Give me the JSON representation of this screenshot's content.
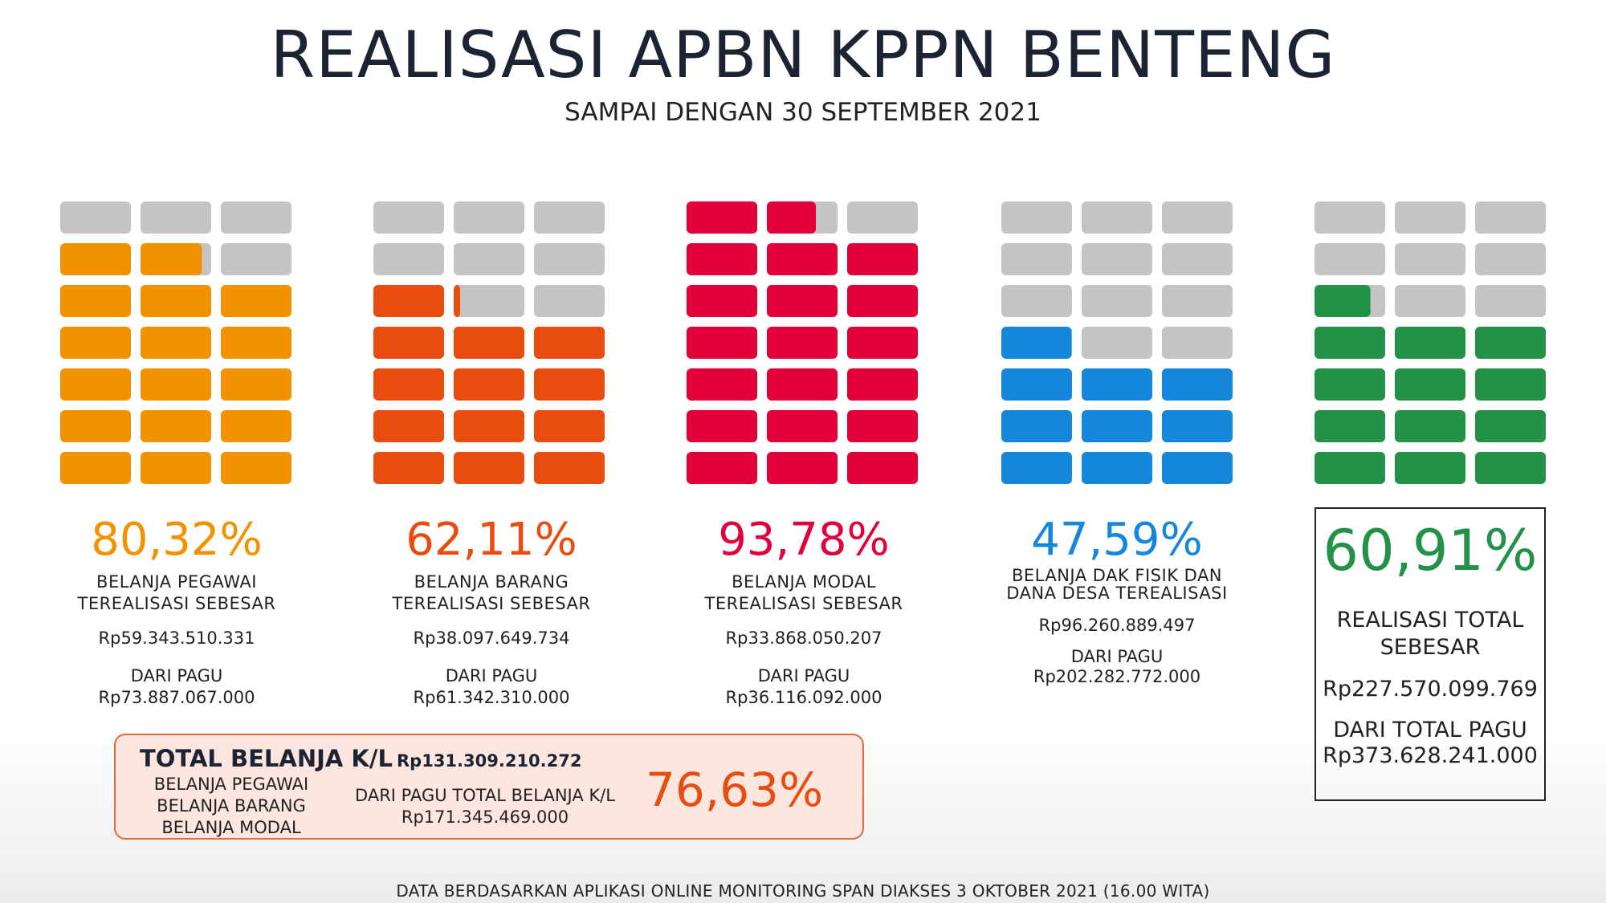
{
  "title": "REALISASI APBN KPPN BENTENG",
  "subtitle": "SAMPAI DENGAN 30 SEPTEMBER 2021",
  "footer": "DATA BERDASARKAN APLIKASI ONLINE MONITORING SPAN DIAKSES 3 OKTOBER 2021 (16.00 WITA)",
  "colors": {
    "empty": "#c4c4c4",
    "pegawai": "#f39200",
    "barang": "#e84c0e",
    "modal": "#e2003b",
    "dak": "#1587db",
    "total": "#239248"
  },
  "chart_data": {
    "type": "bar",
    "categories": [
      "BELANJA PEGAWAI",
      "BELANJA BARANG",
      "BELANJA MODAL",
      "BELANJA DAK FISIK DAN DANA DESA",
      "REALISASI TOTAL"
    ],
    "series": [
      {
        "values": [
          80.32,
          62.11,
          93.78,
          47.59,
          60.91
        ]
      }
    ],
    "ylim": [
      0,
      100
    ]
  },
  "categories": [
    {
      "pct_text": "80,32%",
      "pct": 80.32,
      "color": "#f39200",
      "label_lines": [
        "BELANJA PEGAWAI",
        "TEREALISASI SEBESAR"
      ],
      "amount": "Rp59.343.510.331",
      "pagu_label": "DARI PAGU",
      "pagu": "Rp73.887.067.000"
    },
    {
      "pct_text": "62,11%",
      "pct": 62.11,
      "color": "#e84c0e",
      "label_lines": [
        "BELANJA BARANG",
        "TEREALISASI SEBESAR"
      ],
      "amount": "Rp38.097.649.734",
      "pagu_label": "DARI PAGU",
      "pagu": "Rp61.342.310.000"
    },
    {
      "pct_text": "93,78%",
      "pct": 93.78,
      "color": "#e2003b",
      "label_lines": [
        "BELANJA MODAL",
        "TEREALISASI SEBESAR"
      ],
      "amount": "Rp33.868.050.207",
      "pagu_label": "DARI PAGU",
      "pagu": "Rp36.116.092.000"
    },
    {
      "pct_text": "47,59%",
      "pct": 47.59,
      "color": "#1587db",
      "label_lines": [
        "BELANJA DAK FISIK DAN",
        "DANA DESA TEREALISASI"
      ],
      "amount": "Rp96.260.889.497",
      "pagu_label": "DARI PAGU",
      "pagu": "Rp202.282.772.000"
    },
    {
      "pct_text": "60,91%",
      "pct": 60.91,
      "color": "#239248",
      "label_lines": [
        "REALISASI TOTAL",
        "SEBESAR"
      ],
      "amount": "Rp227.570.099.769",
      "pagu_label": "DARI TOTAL PAGU",
      "pagu": "Rp373.628.241.000"
    }
  ],
  "kl_summary": {
    "title": "TOTAL BELANJA K/L",
    "amount": "Rp131.309.210.272",
    "items": [
      "BELANJA PEGAWAI",
      "BELANJA BARANG",
      "BELANJA MODAL"
    ],
    "pagu_label": "DARI PAGU TOTAL BELANJA K/L",
    "pagu": "Rp171.345.469.000",
    "pct_text": "76,63%"
  }
}
